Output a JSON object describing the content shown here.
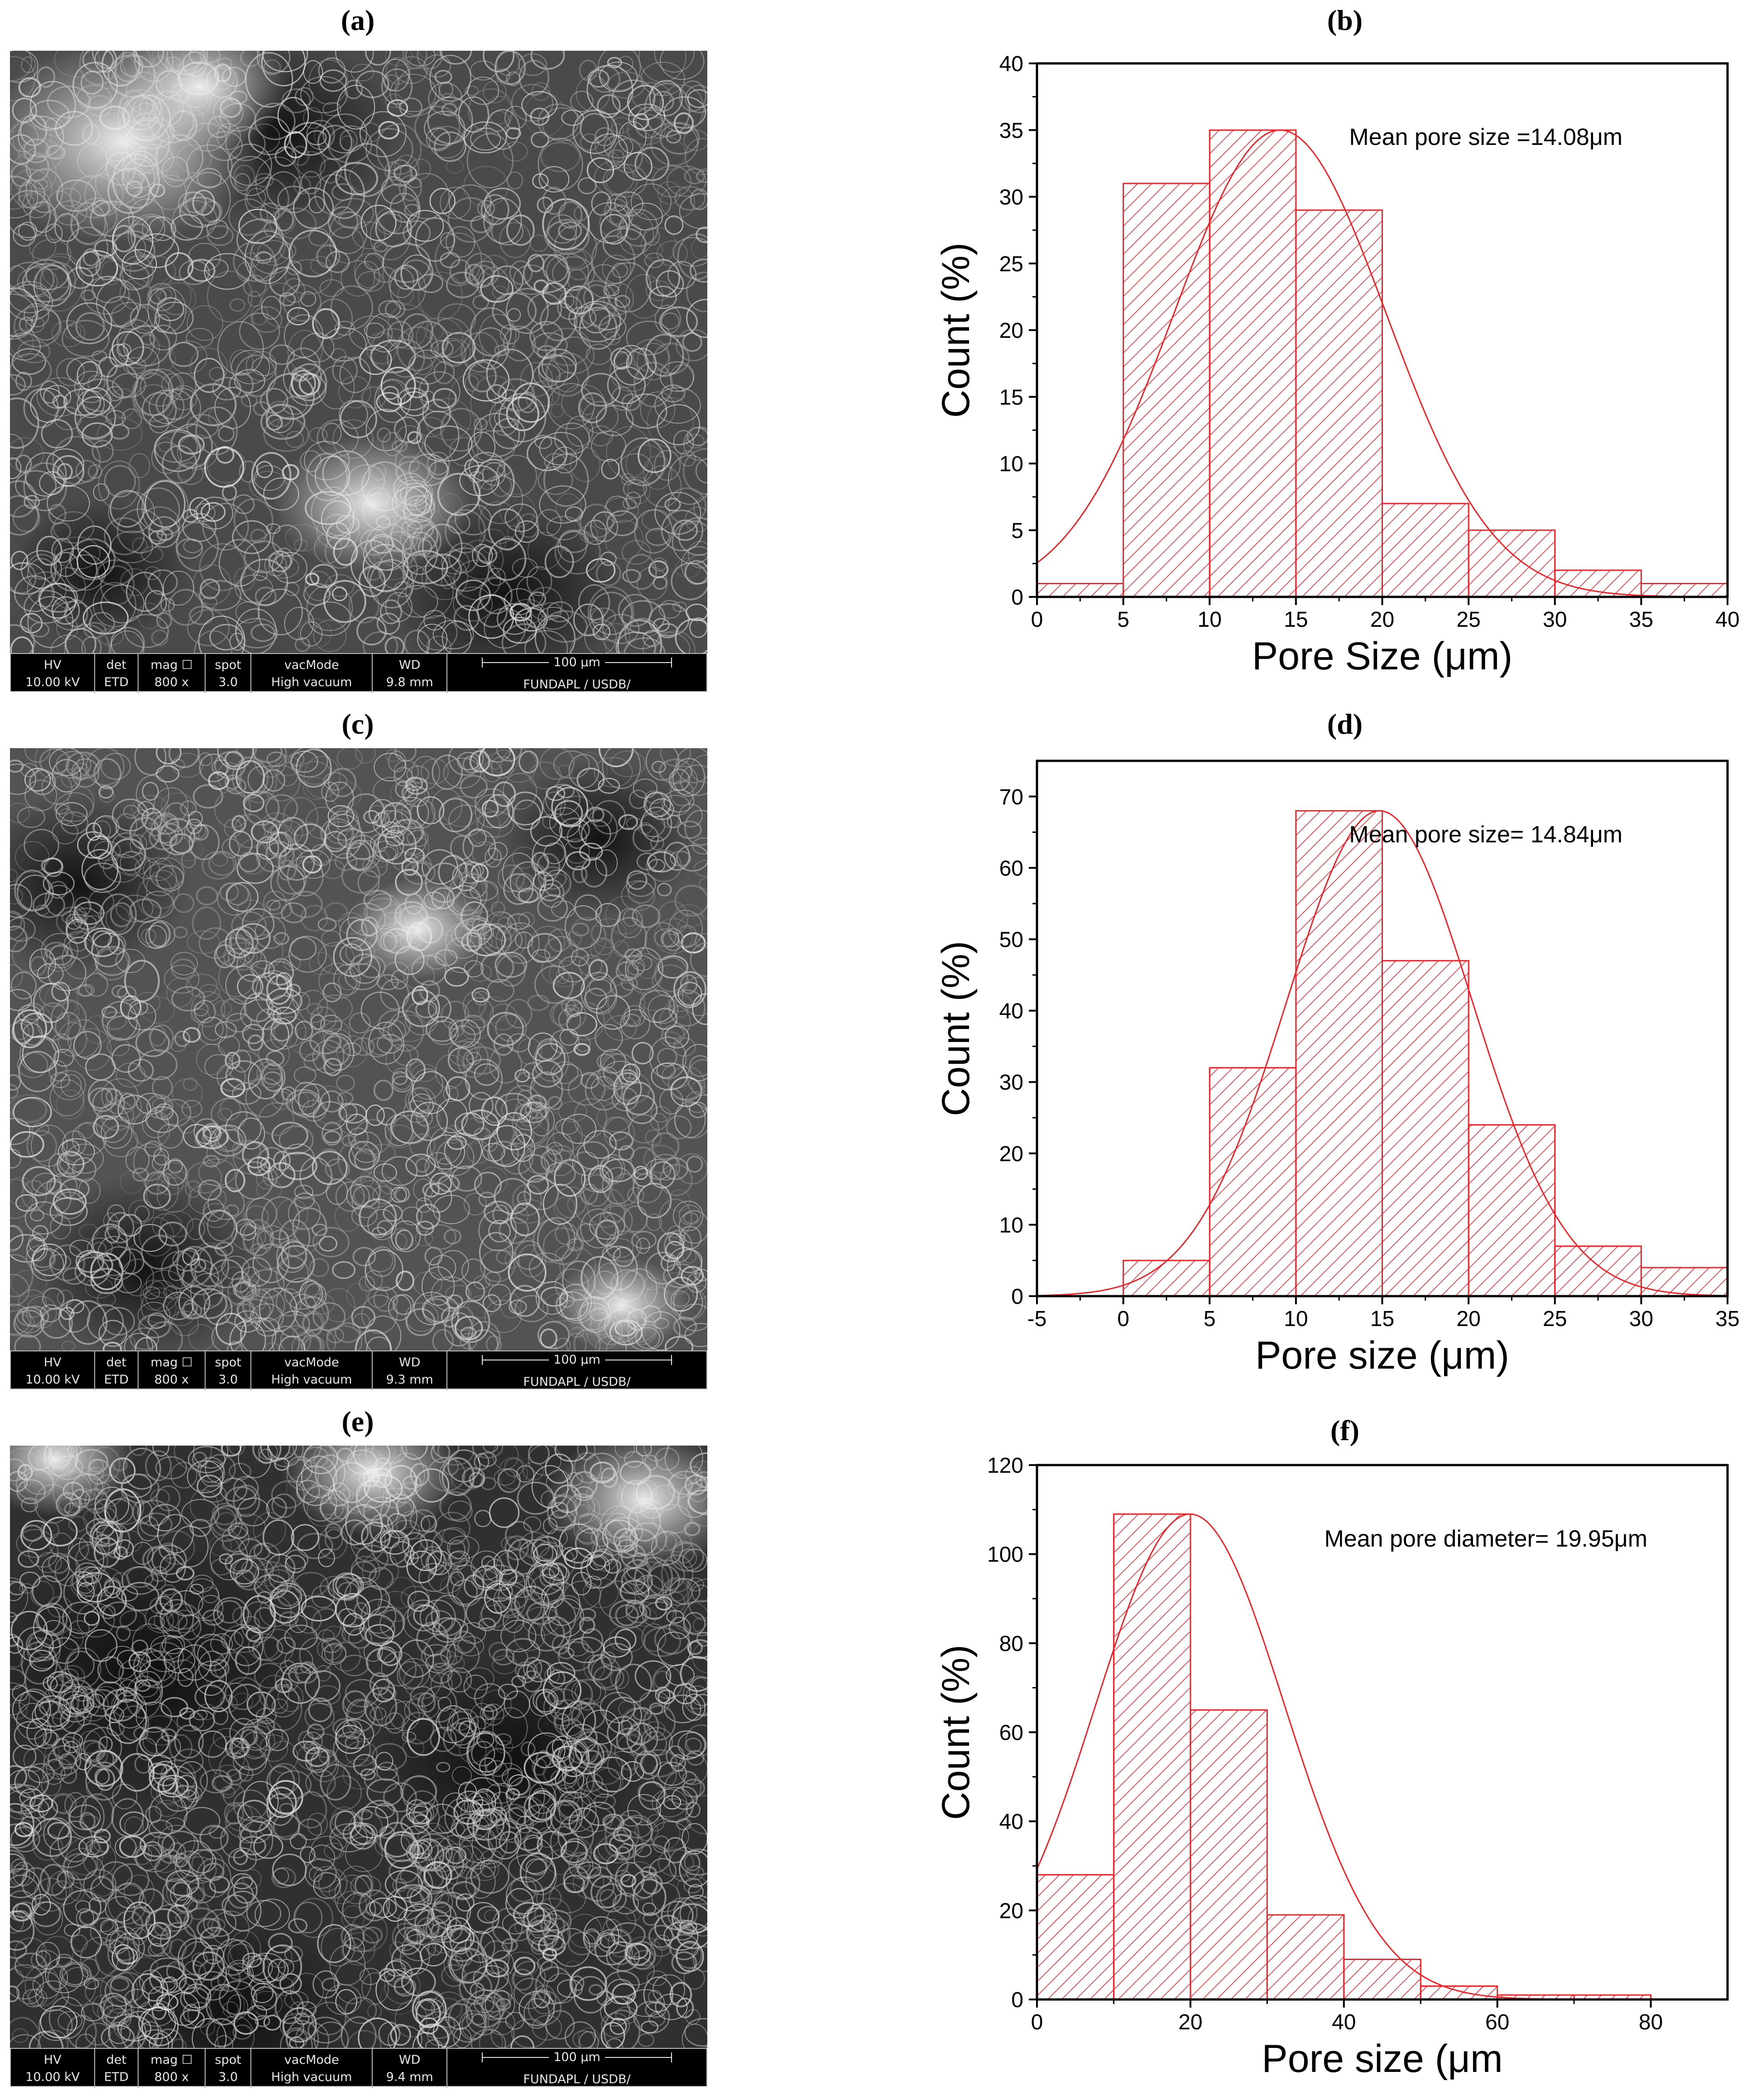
{
  "panels": {
    "a": "(a)",
    "b": "(b)",
    "c": "(c)",
    "d": "(d)",
    "e": "(e)",
    "f": "(f)"
  },
  "sem_images": [
    {
      "header": {
        "hv": "HV",
        "det": "det",
        "mag": "mag ☐",
        "spot": "spot",
        "vac": "vacMode",
        "wd": "WD",
        "scale": "100 μm"
      },
      "values": {
        "hv": "10.00 kV",
        "det": "ETD",
        "mag": "800 x",
        "spot": "3.0",
        "vac": "High vacuum",
        "wd": "9.8 mm",
        "org": "FUNDAPL / USDB/"
      },
      "brightness": "mixed-bright-top-left"
    },
    {
      "header": {
        "hv": "HV",
        "det": "det",
        "mag": "mag ☐",
        "spot": "spot",
        "vac": "vacMode",
        "wd": "WD",
        "scale": "100 μm"
      },
      "values": {
        "hv": "10.00 kV",
        "det": "ETD",
        "mag": "800 x",
        "spot": "3.0",
        "vac": "High vacuum",
        "wd": "9.3 mm",
        "org": "FUNDAPL / USDB/"
      },
      "brightness": "mid-grey"
    },
    {
      "header": {
        "hv": "HV",
        "det": "det",
        "mag": "mag ☐",
        "spot": "spot",
        "vac": "vacMode",
        "wd": "WD",
        "scale": "100 μm"
      },
      "values": {
        "hv": "10.00 kV",
        "det": "ETD",
        "mag": "800 x",
        "spot": "3.0",
        "vac": "High vacuum",
        "wd": "9.4 mm",
        "org": "FUNDAPL / USDB/"
      },
      "brightness": "dark-with-bright-top"
    }
  ],
  "colors": {
    "bar": "#e8262b",
    "axis": "#000000"
  },
  "chart_data": [
    {
      "type": "bar",
      "panel": "b",
      "bin_edges": [
        0,
        5,
        10,
        15,
        20,
        25,
        30,
        35,
        40
      ],
      "values": [
        1,
        31,
        35,
        29,
        7,
        5,
        2,
        1
      ],
      "fit": {
        "type": "normal",
        "mean": 14.08,
        "peak": 35
      },
      "xlim": [
        0,
        40
      ],
      "ylim": [
        0,
        40
      ],
      "xticks": [
        0,
        5,
        10,
        15,
        20,
        25,
        30,
        35,
        40
      ],
      "yticks": [
        0,
        5,
        10,
        15,
        20,
        25,
        30,
        35,
        40
      ],
      "xlabel": "Pore Size (μm)",
      "ylabel": "Count (%)",
      "annotation": "Mean pore size =14.08μm",
      "fill": "hatched"
    },
    {
      "type": "bar",
      "panel": "d",
      "bin_edges": [
        0,
        5,
        10,
        15,
        20,
        25,
        30,
        35
      ],
      "values": [
        5,
        32,
        68,
        47,
        24,
        7,
        4
      ],
      "fit": {
        "type": "normal",
        "mean": 14.84,
        "peak": 68
      },
      "xlim": [
        -5,
        35
      ],
      "ylim": [
        0,
        75
      ],
      "xticks": [
        -5,
        0,
        5,
        10,
        15,
        20,
        25,
        30,
        35
      ],
      "yticks": [
        0,
        10,
        20,
        30,
        40,
        50,
        60,
        70
      ],
      "xlabel": "Pore size (μm)",
      "ylabel": "Count (%)",
      "annotation": "Mean pore size= 14.84μm",
      "fill": "hatched"
    },
    {
      "type": "bar",
      "panel": "f",
      "bin_edges": [
        0,
        10,
        20,
        30,
        40,
        50,
        60,
        70,
        80
      ],
      "values": [
        28,
        109,
        65,
        19,
        9,
        3,
        1,
        1
      ],
      "fit": {
        "type": "normal",
        "mean": 19.95,
        "peak": 109
      },
      "xlim": [
        0,
        90
      ],
      "ylim": [
        0,
        120
      ],
      "xticks": [
        0,
        20,
        40,
        60,
        80
      ],
      "yticks": [
        0,
        20,
        40,
        60,
        80,
        100,
        120
      ],
      "xlabel": "Pore size (μm",
      "ylabel": "Count (%)",
      "annotation": "Mean pore diameter= 19.95μm",
      "fill": "hatched"
    }
  ]
}
